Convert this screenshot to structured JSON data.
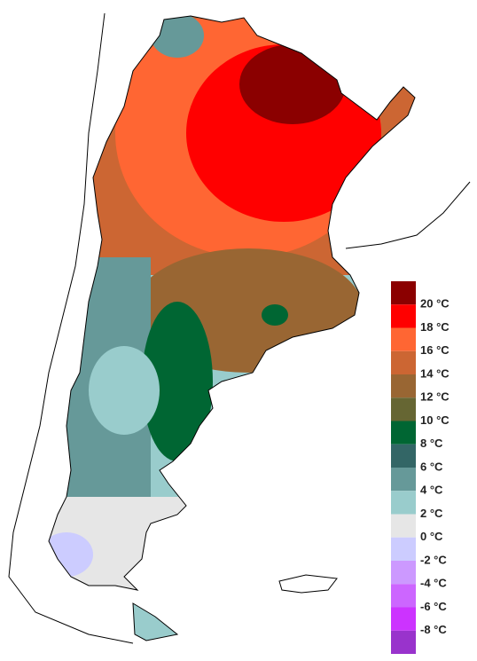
{
  "legend": {
    "colors": [
      "#8b0000",
      "#ff0000",
      "#ff6633",
      "#cc6633",
      "#996633",
      "#666633",
      "#006633",
      "#336666",
      "#669999",
      "#99cccc",
      "#e6e6e6",
      "#ccccff",
      "#cc99ff",
      "#cc66ff",
      "#cc33ff",
      "#9933cc"
    ],
    "labels": [
      "20 °C",
      "18 °C",
      "16 °C",
      "14 °C",
      "12 °C",
      "10 °C",
      "8 °C",
      "6 °C",
      "4 °C",
      "2 °C",
      "0 °C",
      "-2 °C",
      "-4 °C",
      "-6 °C",
      "-8 °C"
    ]
  }
}
